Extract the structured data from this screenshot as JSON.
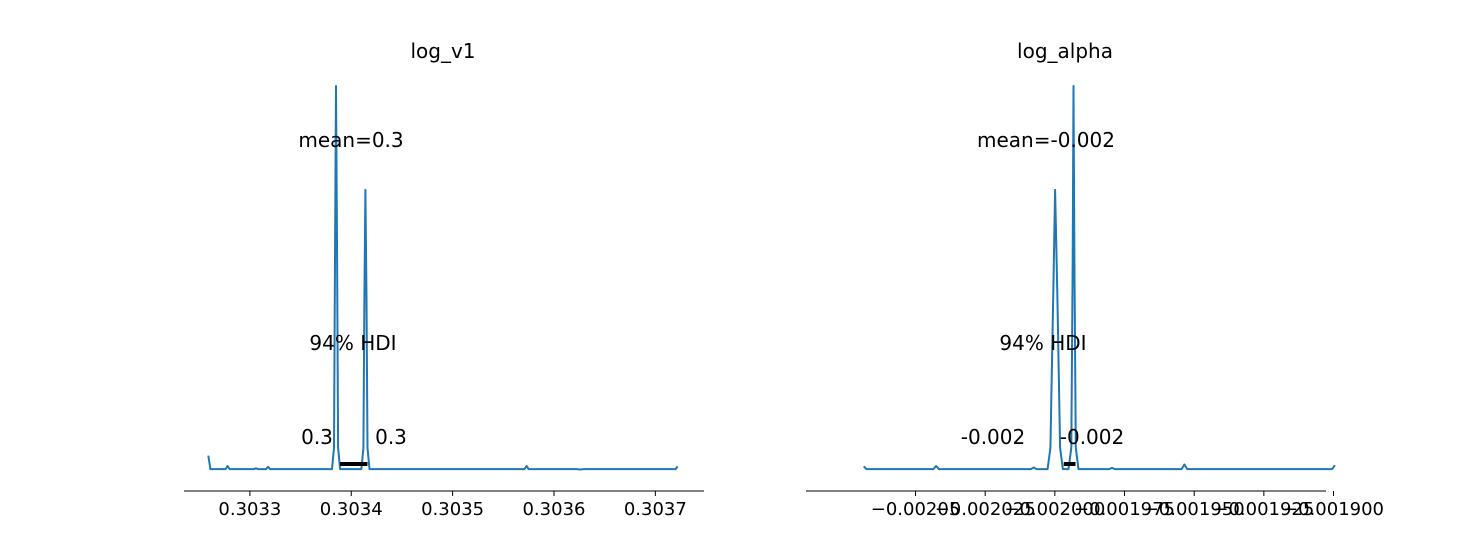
{
  "chart_data": [
    {
      "type": "line",
      "title": "log_v1",
      "xlabel": "",
      "ylabel": "",
      "x_ticks": [
        {
          "value": 0.3033,
          "label": "0.3033"
        },
        {
          "value": 0.3034,
          "label": "0.3034"
        },
        {
          "value": 0.3035,
          "label": "0.3035"
        },
        {
          "value": 0.3036,
          "label": "0.3036"
        },
        {
          "value": 0.3037,
          "label": "0.3037"
        }
      ],
      "xlim": [
        0.303235,
        0.303748
      ],
      "ylim": [
        -0.05,
        1.05
      ],
      "mean_label": "mean=0.3",
      "hdi_label": "94% HDI",
      "hdi_low_label": "0.3",
      "hdi_high_label": "0.3",
      "hdi_range": [
        0.303389,
        0.303416
      ],
      "series": [
        {
          "color": "#1f77b4",
          "points": [
            [
              0.303259,
              0.04
            ],
            [
              0.303261,
              0.005
            ],
            [
              0.30327,
              0.005
            ],
            [
              0.303276,
              0.005
            ],
            [
              0.303278,
              0.013
            ],
            [
              0.30328,
              0.005
            ],
            [
              0.303304,
              0.005
            ],
            [
              0.303306,
              0.007
            ],
            [
              0.303308,
              0.005
            ],
            [
              0.303316,
              0.005
            ],
            [
              0.303318,
              0.011
            ],
            [
              0.30332,
              0.005
            ],
            [
              0.303381,
              0.005
            ],
            [
              0.303383,
              0.06
            ],
            [
              0.303384,
              0.55
            ],
            [
              0.303385,
              1.0
            ],
            [
              0.303386,
              0.55
            ],
            [
              0.303387,
              0.06
            ],
            [
              0.303389,
              0.005
            ],
            [
              0.30341,
              0.005
            ],
            [
              0.303412,
              0.06
            ],
            [
              0.303413,
              0.45
            ],
            [
              0.303414,
              0.73
            ],
            [
              0.303415,
              0.45
            ],
            [
              0.303416,
              0.06
            ],
            [
              0.303418,
              0.005
            ],
            [
              0.303571,
              0.005
            ],
            [
              0.303573,
              0.013
            ],
            [
              0.303575,
              0.005
            ],
            [
              0.303623,
              0.005
            ],
            [
              0.303625,
              0.004
            ],
            [
              0.30363,
              0.005
            ],
            [
              0.30372,
              0.005
            ],
            [
              0.303722,
              0.012
            ]
          ]
        }
      ]
    },
    {
      "type": "line",
      "title": "log_alpha",
      "xlabel": "",
      "ylabel": "",
      "x_ticks": [
        {
          "value": -0.00205,
          "label": "−0.00205"
        },
        {
          "value": -0.002025,
          "label": "−0.002025"
        },
        {
          "value": -0.002,
          "label": "−0.002000"
        },
        {
          "value": -0.001975,
          "label": "−0.001975"
        },
        {
          "value": -0.00195,
          "label": "−0.001950"
        },
        {
          "value": -0.001925,
          "label": "−0.001925"
        },
        {
          "value": -0.0019,
          "label": "−0.001900"
        }
      ],
      "xlim": [
        -0.0020893,
        -0.0019027
      ],
      "ylim": [
        -0.05,
        1.05
      ],
      "mean_label": "mean=-0.002",
      "hdi_label": "94% HDI",
      "hdi_low_label": "-0.002",
      "hdi_high_label": "-0.002",
      "hdi_range": [
        -0.0019968,
        -0.0019926
      ],
      "series": [
        {
          "color": "#1f77b4",
          "points": [
            [
              -0.0020686,
              0.012
            ],
            [
              -0.0020676,
              0.005
            ],
            [
              -0.0020436,
              0.005
            ],
            [
              -0.0020426,
              0.013
            ],
            [
              -0.0020416,
              0.005
            ],
            [
              -0.0020086,
              0.005
            ],
            [
              -0.0020076,
              0.009
            ],
            [
              -0.0020066,
              0.005
            ],
            [
              -0.0020026,
              0.005
            ],
            [
              -0.0020016,
              0.06
            ],
            [
              -0.0020006,
              0.45
            ],
            [
              -0.0019999,
              0.73
            ],
            [
              -0.0019991,
              0.45
            ],
            [
              -0.0019981,
              0.06
            ],
            [
              -0.0019971,
              0.005
            ],
            [
              -0.0019951,
              0.005
            ],
            [
              -0.0019941,
              0.06
            ],
            [
              -0.0019936,
              0.55
            ],
            [
              -0.0019933,
              1.0
            ],
            [
              -0.001993,
              0.55
            ],
            [
              -0.0019925,
              0.06
            ],
            [
              -0.0019915,
              0.005
            ],
            [
              -0.0019805,
              0.005
            ],
            [
              -0.0019795,
              0.008
            ],
            [
              -0.0019785,
              0.005
            ],
            [
              -0.0019545,
              0.005
            ],
            [
              -0.0019535,
              0.017
            ],
            [
              -0.0019525,
              0.005
            ],
            [
              -0.0019005,
              0.005
            ],
            [
              -0.0018995,
              0.015
            ]
          ]
        }
      ]
    }
  ]
}
